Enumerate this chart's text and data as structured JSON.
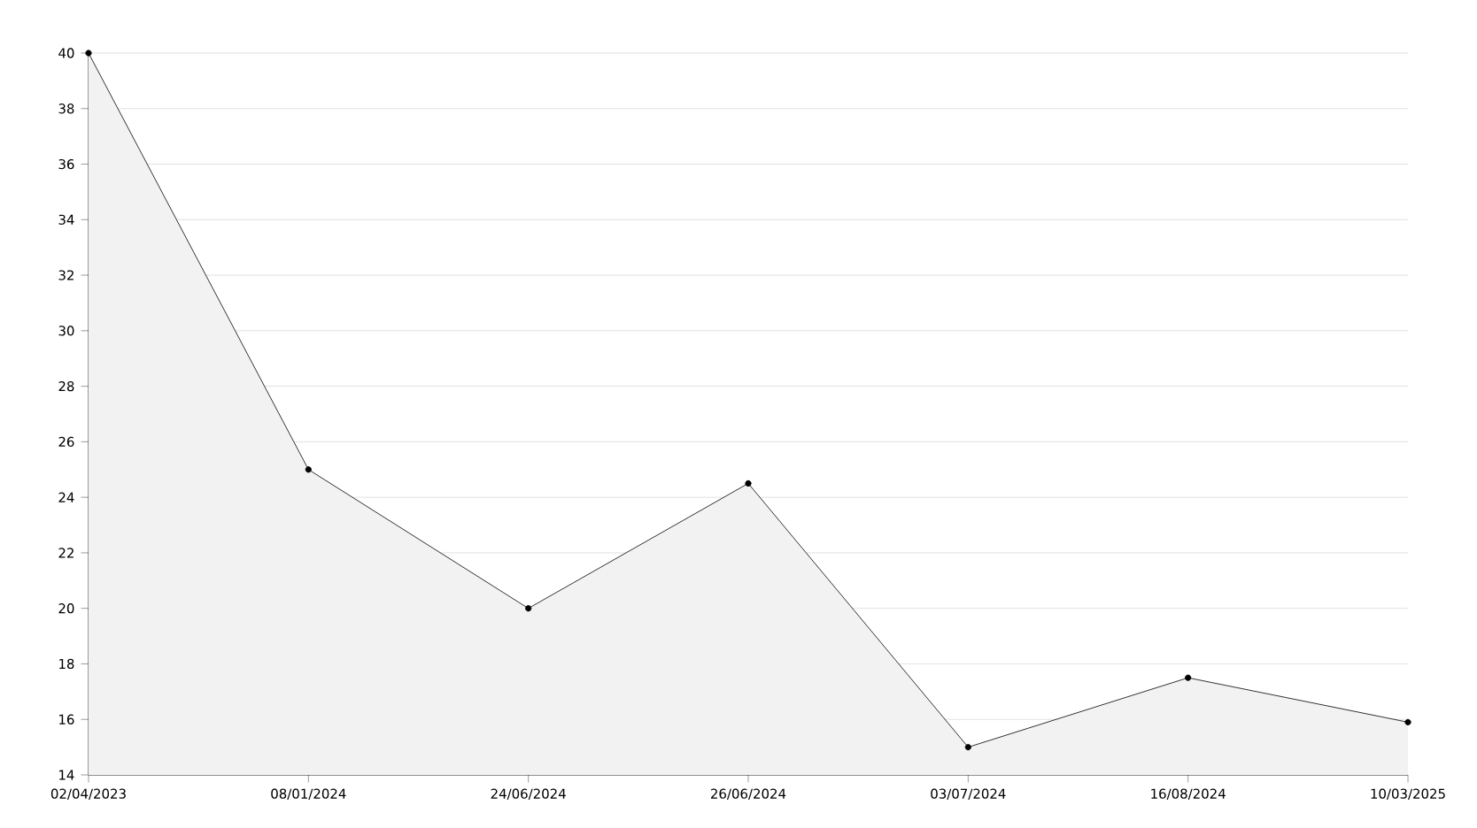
{
  "chart_data": {
    "type": "area",
    "categories": [
      "02/04/2023",
      "08/01/2024",
      "24/06/2024",
      "26/06/2024",
      "03/07/2024",
      "16/08/2024",
      "10/03/2025"
    ],
    "series": [
      {
        "color": "#000000",
        "values": [
          40,
          25,
          20,
          24.5,
          15,
          17.5,
          15.9
        ]
      }
    ],
    "ylim": [
      14,
      40
    ],
    "yticks": [
      14,
      16,
      18,
      20,
      22,
      24,
      26,
      28,
      30,
      32,
      34,
      36,
      38,
      40
    ],
    "grid": "y",
    "marker": "circle",
    "line_style": "solid"
  }
}
